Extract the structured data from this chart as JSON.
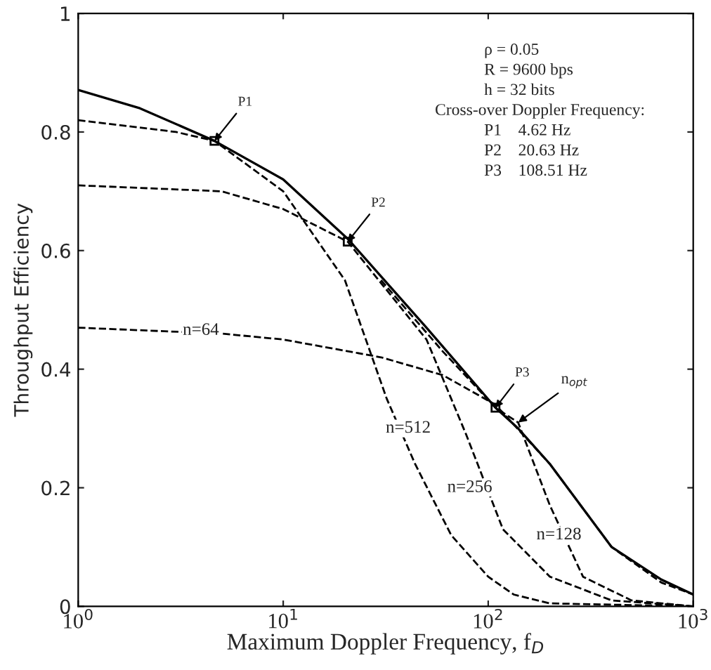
{
  "chart_data": {
    "type": "line",
    "xlabel": "Maximum Doppler Frequency, f$_{D}$",
    "ylabel": "Throughput Efficiency",
    "log": "x",
    "xlim": [
      1,
      1000
    ],
    "ylim": [
      0,
      1
    ],
    "xticks": [
      {
        "value": 1,
        "label": "10$^{0}$"
      },
      {
        "value": 10,
        "label": "10$^{1}$"
      },
      {
        "value": 100,
        "label": "10$^{2}$"
      },
      {
        "value": 1000,
        "label": "10$^{3}$"
      }
    ],
    "yticks": [
      0,
      0.2,
      0.4,
      0.6,
      0.8,
      1
    ],
    "grid": false,
    "legend": false,
    "marker": "none",
    "series": [
      {
        "color": "#000000",
        "line_style": "solid",
        "x": [
          1,
          2,
          4.62,
          10,
          20.63,
          50,
          108.51,
          140,
          200,
          400,
          700,
          1000
        ],
        "values": [
          0.871,
          0.84,
          0.785,
          0.72,
          0.62,
          0.47,
          0.335,
          0.3,
          0.24,
          0.1,
          0.045,
          0.02
        ]
      },
      {
        "color": "#000000",
        "line_style": "dashed",
        "x": [
          1,
          3,
          4.62,
          10,
          20,
          32,
          44,
          66,
          100,
          133,
          200,
          1000
        ],
        "values": [
          0.82,
          0.8,
          0.785,
          0.7,
          0.55,
          0.35,
          0.24,
          0.12,
          0.05,
          0.02,
          0.005,
          0
        ]
      },
      {
        "color": "#000000",
        "line_style": "dashed",
        "x": [
          1,
          5,
          10,
          20.63,
          50,
          78,
          118,
          200,
          400,
          1000
        ],
        "values": [
          0.71,
          0.7,
          0.67,
          0.615,
          0.45,
          0.29,
          0.13,
          0.05,
          0.01,
          0
        ]
      },
      {
        "color": "#000000",
        "line_style": "dashed",
        "x": [
          30,
          60,
          108.51,
          140,
          200,
          290,
          500,
          1000
        ],
        "values": [
          0.55,
          0.43,
          0.335,
          0.31,
          0.17,
          0.05,
          0.01,
          0
        ]
      },
      {
        "color": "#000000",
        "line_style": "dashed",
        "x": [
          1,
          5,
          10,
          30,
          60,
          108.51,
          200,
          400,
          700,
          1000
        ],
        "values": [
          0.47,
          0.46,
          0.45,
          0.42,
          0.39,
          0.34,
          0.24,
          0.1,
          0.04,
          0.02
        ]
      }
    ],
    "annotations": [
      "ρ = 0.05",
      "R = 9600 bps",
      "h = 32 bits",
      "Cross-over Doppler Frequency:",
      "P1    4.62 Hz",
      "P2    20.63 Hz",
      "P3    108.51 Hz",
      {
        "text": "P1",
        "x": 4.62,
        "y": 0.785
      },
      {
        "text": "P2",
        "x": 20.63,
        "y": 0.615
      },
      {
        "text": "P3",
        "x": 108.51,
        "y": 0.335
      },
      {
        "text": "n$_{opt}$",
        "x": 140,
        "y": 0.31
      },
      "n=64",
      "n=512",
      "n=256",
      "n=128"
    ]
  }
}
